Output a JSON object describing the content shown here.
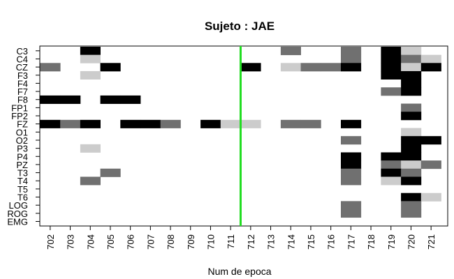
{
  "chart_data": {
    "type": "heatmap",
    "title": "Sujeto : JAE",
    "xlabel": "Num de epoca",
    "ylabel": "",
    "x_categories": [
      "702",
      "703",
      "704",
      "705",
      "706",
      "707",
      "708",
      "709",
      "710",
      "711",
      "712",
      "713",
      "714",
      "715",
      "716",
      "717",
      "718",
      "719",
      "720",
      "721"
    ],
    "y_categories": [
      "C3",
      "C4",
      "CZ",
      "F3",
      "F4",
      "F7",
      "F8",
      "FP1",
      "FP2",
      "FZ",
      "O1",
      "O2",
      "P3",
      "P4",
      "PZ",
      "T3",
      "T4",
      "T5",
      "T6",
      "LOG",
      "ROG",
      "EMG"
    ],
    "colors": {
      "1": "#cccccc",
      "2": "#707070",
      "3": "#000000",
      "marker": "#22dd22",
      "background": "#ffffff"
    },
    "marker_line_at": "712",
    "cells": [
      {
        "x": "704",
        "y": "C3",
        "v": 3
      },
      {
        "x": "714",
        "y": "C3",
        "v": 2
      },
      {
        "x": "717",
        "y": "C3",
        "v": 2
      },
      {
        "x": "719",
        "y": "C3",
        "v": 3
      },
      {
        "x": "720",
        "y": "C3",
        "v": 1
      },
      {
        "x": "704",
        "y": "C4",
        "v": 1
      },
      {
        "x": "717",
        "y": "C4",
        "v": 2
      },
      {
        "x": "719",
        "y": "C4",
        "v": 3
      },
      {
        "x": "720",
        "y": "C4",
        "v": 2
      },
      {
        "x": "721",
        "y": "C4",
        "v": 1
      },
      {
        "x": "702",
        "y": "CZ",
        "v": 2
      },
      {
        "x": "705",
        "y": "CZ",
        "v": 3
      },
      {
        "x": "712",
        "y": "CZ",
        "v": 3
      },
      {
        "x": "714",
        "y": "CZ",
        "v": 1
      },
      {
        "x": "715",
        "y": "CZ",
        "v": 2
      },
      {
        "x": "716",
        "y": "CZ",
        "v": 2
      },
      {
        "x": "717",
        "y": "CZ",
        "v": 3
      },
      {
        "x": "719",
        "y": "CZ",
        "v": 3
      },
      {
        "x": "720",
        "y": "CZ",
        "v": 1
      },
      {
        "x": "721",
        "y": "CZ",
        "v": 3
      },
      {
        "x": "704",
        "y": "F3",
        "v": 1
      },
      {
        "x": "719",
        "y": "F3",
        "v": 3
      },
      {
        "x": "720",
        "y": "F3",
        "v": 3
      },
      {
        "x": "720",
        "y": "F4",
        "v": 3
      },
      {
        "x": "719",
        "y": "F7",
        "v": 2
      },
      {
        "x": "720",
        "y": "F7",
        "v": 3
      },
      {
        "x": "702",
        "y": "F8",
        "v": 3
      },
      {
        "x": "703",
        "y": "F8",
        "v": 3
      },
      {
        "x": "705",
        "y": "F8",
        "v": 3
      },
      {
        "x": "706",
        "y": "F8",
        "v": 3
      },
      {
        "x": "720",
        "y": "FP1",
        "v": 2
      },
      {
        "x": "720",
        "y": "FP2",
        "v": 3
      },
      {
        "x": "702",
        "y": "FZ",
        "v": 3
      },
      {
        "x": "703",
        "y": "FZ",
        "v": 2
      },
      {
        "x": "704",
        "y": "FZ",
        "v": 3
      },
      {
        "x": "706",
        "y": "FZ",
        "v": 3
      },
      {
        "x": "707",
        "y": "FZ",
        "v": 3
      },
      {
        "x": "708",
        "y": "FZ",
        "v": 2
      },
      {
        "x": "710",
        "y": "FZ",
        "v": 3
      },
      {
        "x": "711",
        "y": "FZ",
        "v": 1
      },
      {
        "x": "712",
        "y": "FZ",
        "v": 1
      },
      {
        "x": "714",
        "y": "FZ",
        "v": 2
      },
      {
        "x": "715",
        "y": "FZ",
        "v": 2
      },
      {
        "x": "717",
        "y": "FZ",
        "v": 3
      },
      {
        "x": "720",
        "y": "O1",
        "v": 1
      },
      {
        "x": "717",
        "y": "O2",
        "v": 2
      },
      {
        "x": "720",
        "y": "O2",
        "v": 3
      },
      {
        "x": "721",
        "y": "O2",
        "v": 3
      },
      {
        "x": "704",
        "y": "P3",
        "v": 1
      },
      {
        "x": "720",
        "y": "P3",
        "v": 3
      },
      {
        "x": "717",
        "y": "P4",
        "v": 3
      },
      {
        "x": "719",
        "y": "P4",
        "v": 3
      },
      {
        "x": "720",
        "y": "P4",
        "v": 3
      },
      {
        "x": "717",
        "y": "PZ",
        "v": 3
      },
      {
        "x": "719",
        "y": "PZ",
        "v": 2
      },
      {
        "x": "720",
        "y": "PZ",
        "v": 1
      },
      {
        "x": "721",
        "y": "PZ",
        "v": 2
      },
      {
        "x": "705",
        "y": "T3",
        "v": 2
      },
      {
        "x": "717",
        "y": "T3",
        "v": 2
      },
      {
        "x": "719",
        "y": "T3",
        "v": 3
      },
      {
        "x": "720",
        "y": "T3",
        "v": 2
      },
      {
        "x": "704",
        "y": "T4",
        "v": 2
      },
      {
        "x": "717",
        "y": "T4",
        "v": 2
      },
      {
        "x": "719",
        "y": "T4",
        "v": 1
      },
      {
        "x": "720",
        "y": "T4",
        "v": 3
      },
      {
        "x": "720",
        "y": "T6",
        "v": 3
      },
      {
        "x": "721",
        "y": "T6",
        "v": 1
      },
      {
        "x": "717",
        "y": "LOG",
        "v": 2
      },
      {
        "x": "720",
        "y": "LOG",
        "v": 2
      },
      {
        "x": "717",
        "y": "ROG",
        "v": 2
      },
      {
        "x": "720",
        "y": "ROG",
        "v": 2
      }
    ]
  }
}
